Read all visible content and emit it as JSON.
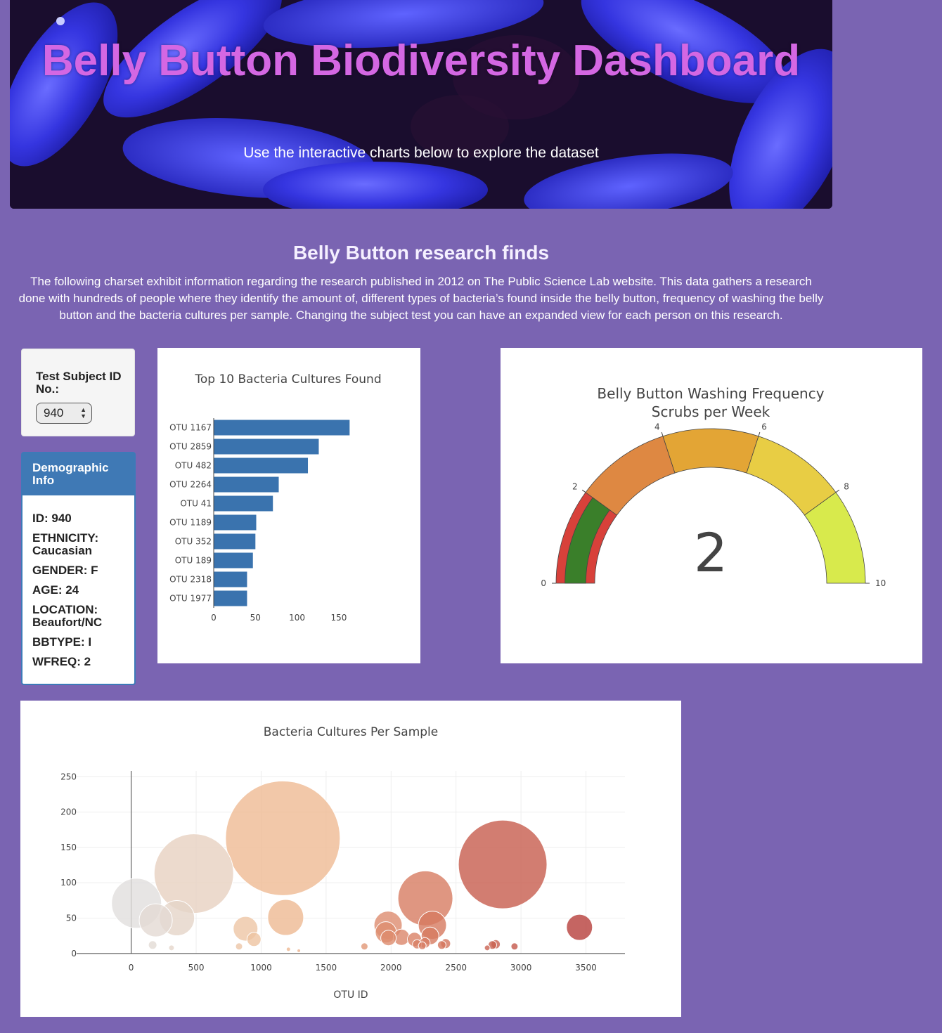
{
  "header": {
    "title": "Belly Button Biodiversity Dashboard",
    "subtitle": "Use the interactive charts below to explore the dataset"
  },
  "research": {
    "heading": "Belly Button research finds",
    "text": "The following charset exhibit information regarding the research published in 2012 on The Public Science Lab website. This data gathers a research done with hundreds of people where they identify the amount of, different types of bacteria’s found inside the belly button, frequency of washing the belly button and the bacteria cultures per sample. Changing the subject test you can have an expanded view for each person on this research."
  },
  "selector": {
    "label": "Test Subject ID No.:",
    "selected": "940"
  },
  "demographic": {
    "heading": "Demographic Info",
    "lines": [
      "ID: 940",
      "ETHNICITY: Caucasian",
      "GENDER: F",
      "AGE: 24",
      "LOCATION: Beaufort/NC",
      "BBTYPE: I",
      "WFREQ: 2"
    ]
  },
  "colors": {
    "background": "#7a64b2",
    "title": "#d467e3",
    "bar": "#3a73ae",
    "panel_header": "#3f79b5"
  },
  "chart_data": [
    {
      "type": "bar",
      "orientation": "horizontal",
      "title": "Top 10 Bacteria Cultures Found",
      "categories": [
        "OTU 1167",
        "OTU 2859",
        "OTU 482",
        "OTU 2264",
        "OTU 41",
        "OTU 1189",
        "OTU 352",
        "OTU 189",
        "OTU 2318",
        "OTU 1977"
      ],
      "values": [
        163,
        126,
        113,
        78,
        71,
        51,
        50,
        47,
        40,
        40
      ],
      "xticks": [
        0,
        50,
        100,
        150
      ],
      "xlim": [
        0,
        172
      ]
    },
    {
      "type": "gauge",
      "title": "Belly Button Washing Frequency",
      "subtitle": "Scrubs per Week",
      "value": 2,
      "range": [
        0,
        10
      ],
      "ticks": [
        0,
        2,
        4,
        6,
        8,
        10
      ],
      "steps": [
        {
          "range": [
            0,
            2
          ],
          "color": "#d8413a"
        },
        {
          "range": [
            2,
            4
          ],
          "color": "#de8842"
        },
        {
          "range": [
            4,
            6
          ],
          "color": "#e3a535"
        },
        {
          "range": [
            6,
            8
          ],
          "color": "#e8cd44"
        },
        {
          "range": [
            8,
            10
          ],
          "color": "#d8ea4c"
        }
      ],
      "bar_color": "#3a7f2a"
    },
    {
      "type": "scatter",
      "mode": "bubble",
      "title": "Bacteria Cultures Per Sample",
      "xlabel": "OTU ID",
      "ylabel": "",
      "xticks": [
        0,
        500,
        1000,
        1500,
        2000,
        2500,
        3000,
        3500
      ],
      "yticks": [
        0,
        50,
        100,
        150,
        200,
        250
      ],
      "xlim": [
        -420,
        3800
      ],
      "ylim": [
        -20,
        298
      ],
      "grid": true,
      "points": [
        {
          "x": 41,
          "y": 71
        },
        {
          "x": 189,
          "y": 47
        },
        {
          "x": 352,
          "y": 50
        },
        {
          "x": 482,
          "y": 113
        },
        {
          "x": 165,
          "y": 12
        },
        {
          "x": 310,
          "y": 8
        },
        {
          "x": 830,
          "y": 10
        },
        {
          "x": 880,
          "y": 35
        },
        {
          "x": 945,
          "y": 20
        },
        {
          "x": 1167,
          "y": 163
        },
        {
          "x": 1189,
          "y": 51
        },
        {
          "x": 1210,
          "y": 6
        },
        {
          "x": 1290,
          "y": 4
        },
        {
          "x": 1795,
          "y": 10
        },
        {
          "x": 1977,
          "y": 40
        },
        {
          "x": 1960,
          "y": 30
        },
        {
          "x": 1980,
          "y": 22
        },
        {
          "x": 2080,
          "y": 23
        },
        {
          "x": 2180,
          "y": 20
        },
        {
          "x": 2200,
          "y": 13
        },
        {
          "x": 2240,
          "y": 11
        },
        {
          "x": 2264,
          "y": 78
        },
        {
          "x": 2318,
          "y": 40
        },
        {
          "x": 2300,
          "y": 25
        },
        {
          "x": 2260,
          "y": 15
        },
        {
          "x": 2390,
          "y": 12
        },
        {
          "x": 2420,
          "y": 14
        },
        {
          "x": 2740,
          "y": 8
        },
        {
          "x": 2780,
          "y": 12
        },
        {
          "x": 2805,
          "y": 13
        },
        {
          "x": 2859,
          "y": 126
        },
        {
          "x": 2950,
          "y": 10
        },
        {
          "x": 3450,
          "y": 37
        }
      ]
    }
  ]
}
